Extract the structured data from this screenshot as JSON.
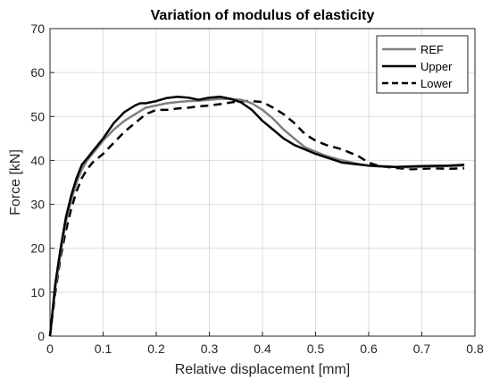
{
  "chart_data": {
    "type": "line",
    "title": "Variation of modulus of elasticity",
    "xlabel": "Relative displacement [mm]",
    "ylabel": "Force [kN]",
    "xlim": [
      0,
      0.8
    ],
    "ylim": [
      0,
      70
    ],
    "xticks": [
      "0",
      "0.1",
      "0.2",
      "0.3",
      "0.4",
      "0.5",
      "0.6",
      "0.7",
      "0.8"
    ],
    "yticks": [
      "0",
      "10",
      "20",
      "30",
      "40",
      "50",
      "60",
      "70"
    ],
    "grid": true,
    "legend_position": "top-right",
    "series": [
      {
        "name": "REF",
        "color": "#808080",
        "dash": "solid",
        "x": [
          0,
          0.01,
          0.02,
          0.03,
          0.04,
          0.05,
          0.06,
          0.07,
          0.08,
          0.1,
          0.12,
          0.14,
          0.16,
          0.18,
          0.2,
          0.22,
          0.24,
          0.26,
          0.28,
          0.3,
          0.32,
          0.34,
          0.36,
          0.38,
          0.4,
          0.42,
          0.44,
          0.46,
          0.48,
          0.5,
          0.52,
          0.55,
          0.58,
          0.6,
          0.62,
          0.65,
          0.68,
          0.7,
          0.72,
          0.75,
          0.78
        ],
        "values": [
          0,
          11,
          19,
          26,
          31,
          35,
          38,
          40,
          41.5,
          44.5,
          47,
          49,
          50.5,
          52,
          52.5,
          53,
          53.3,
          53.5,
          53.6,
          53.8,
          54,
          54,
          53.8,
          53,
          51.5,
          49.5,
          47,
          45,
          43,
          42,
          41,
          40,
          39.2,
          38.8,
          38.6,
          38.5,
          38.4,
          38.5,
          38.6,
          38.7,
          38.8
        ]
      },
      {
        "name": "Upper",
        "color": "#000000",
        "dash": "solid",
        "x": [
          0,
          0.01,
          0.02,
          0.03,
          0.04,
          0.05,
          0.06,
          0.07,
          0.08,
          0.1,
          0.12,
          0.14,
          0.16,
          0.17,
          0.18,
          0.2,
          0.22,
          0.24,
          0.26,
          0.28,
          0.3,
          0.32,
          0.34,
          0.36,
          0.38,
          0.4,
          0.42,
          0.44,
          0.46,
          0.5,
          0.55,
          0.6,
          0.65,
          0.7,
          0.75,
          0.78
        ],
        "values": [
          0,
          12,
          20,
          27,
          32,
          36,
          39,
          40.5,
          42,
          45,
          48.5,
          51,
          52.5,
          53,
          53,
          53.5,
          54.2,
          54.5,
          54.3,
          53.8,
          54.3,
          54.5,
          54,
          53.2,
          51.5,
          49,
          47,
          45,
          43.5,
          41.5,
          39.5,
          38.8,
          38.5,
          38.7,
          38.8,
          39
        ]
      },
      {
        "name": "Lower",
        "color": "#000000",
        "dash": "dashed",
        "x": [
          0,
          0.01,
          0.02,
          0.03,
          0.04,
          0.05,
          0.06,
          0.07,
          0.08,
          0.1,
          0.12,
          0.14,
          0.16,
          0.18,
          0.2,
          0.22,
          0.24,
          0.26,
          0.28,
          0.3,
          0.32,
          0.34,
          0.36,
          0.38,
          0.4,
          0.42,
          0.44,
          0.46,
          0.48,
          0.5,
          0.52,
          0.55,
          0.58,
          0.6,
          0.62,
          0.65,
          0.68,
          0.7,
          0.72,
          0.75,
          0.78
        ],
        "values": [
          0,
          10,
          18,
          24,
          29,
          33,
          36,
          38,
          39.5,
          41.5,
          44,
          46.5,
          48.5,
          50.5,
          51.5,
          51.5,
          51.8,
          52,
          52.3,
          52.5,
          52.8,
          53.2,
          53.5,
          53.5,
          53.3,
          52,
          50.5,
          48.5,
          46,
          44.5,
          43.5,
          42.5,
          41,
          39.5,
          38.7,
          38.3,
          38,
          38.1,
          38.2,
          38.1,
          38.2
        ]
      }
    ]
  }
}
